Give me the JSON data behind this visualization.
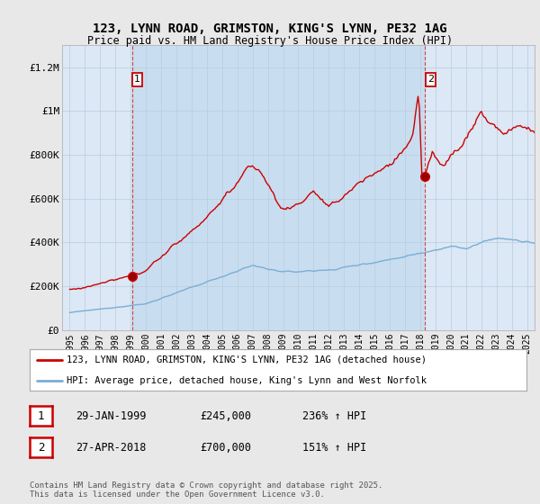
{
  "title_line1": "123, LYNN ROAD, GRIMSTON, KING'S LYNN, PE32 1AG",
  "title_line2": "Price paid vs. HM Land Registry's House Price Index (HPI)",
  "background_color": "#e8e8e8",
  "plot_bg_color": "#dce8f5",
  "shade_color": "#c8ddf0",
  "plot_bg_color2": "#ffffff",
  "red_color": "#cc0000",
  "blue_color": "#7aaed6",
  "annotation1": {
    "label": "1",
    "date_x": 1999.08,
    "price": 245000,
    "text": "29-JAN-1999",
    "price_str": "£245,000",
    "hpi_str": "236% ↑ HPI"
  },
  "annotation2": {
    "label": "2",
    "date_x": 2018.32,
    "price": 700000,
    "text": "27-APR-2018",
    "price_str": "£700,000",
    "hpi_str": "151% ↑ HPI"
  },
  "legend1": "123, LYNN ROAD, GRIMSTON, KING'S LYNN, PE32 1AG (detached house)",
  "legend2": "HPI: Average price, detached house, King's Lynn and West Norfolk",
  "footer": "Contains HM Land Registry data © Crown copyright and database right 2025.\nThis data is licensed under the Open Government Licence v3.0.",
  "xlim": [
    1994.5,
    2025.5
  ],
  "ylim": [
    0,
    1300000
  ],
  "yticks": [
    0,
    200000,
    400000,
    600000,
    800000,
    1000000,
    1200000
  ],
  "ytick_labels": [
    "£0",
    "£200K",
    "£400K",
    "£600K",
    "£800K",
    "£1M",
    "£1.2M"
  ],
  "xticks": [
    1995,
    1996,
    1997,
    1998,
    1999,
    2000,
    2001,
    2002,
    2003,
    2004,
    2005,
    2006,
    2007,
    2008,
    2009,
    2010,
    2011,
    2012,
    2013,
    2014,
    2015,
    2016,
    2017,
    2018,
    2019,
    2020,
    2021,
    2022,
    2023,
    2024,
    2025
  ]
}
